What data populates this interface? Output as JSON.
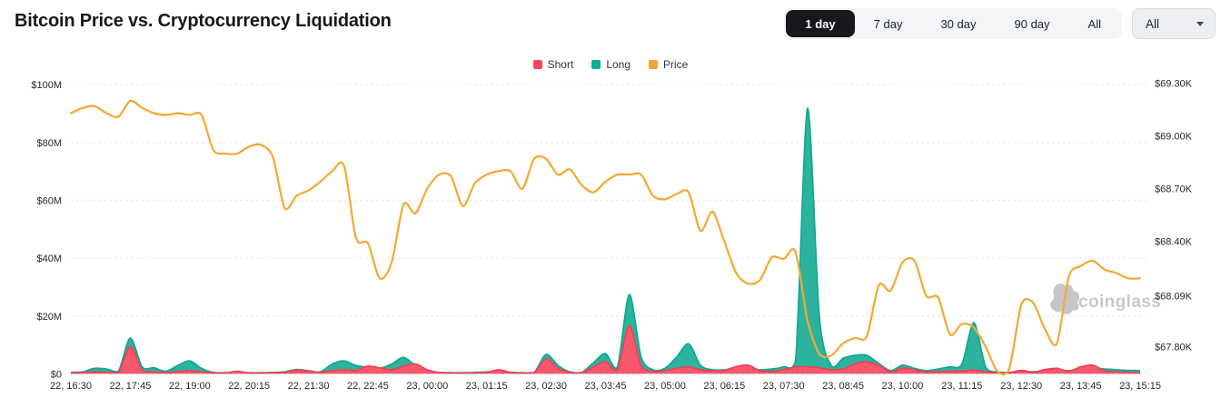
{
  "header": {
    "title": "Bitcoin Price vs. Cryptocurrency Liquidation",
    "range_buttons": [
      "1 day",
      "7 day",
      "30 day",
      "90 day",
      "All"
    ],
    "range_selected": "1 day",
    "dropdown": {
      "value": "All"
    }
  },
  "legend": [
    {
      "label": "Short",
      "color": "#F5465D"
    },
    {
      "label": "Long",
      "color": "#0EAD94"
    },
    {
      "label": "Price",
      "color": "#F0A63C"
    }
  ],
  "watermark": {
    "text": "coinglass"
  },
  "chart_data": {
    "type": "area+line",
    "x_labels": [
      "22, 16:30",
      "22, 17:45",
      "22, 19:00",
      "22, 20:15",
      "22, 21:30",
      "22, 22:45",
      "23, 00:00",
      "23, 01:15",
      "23, 02:30",
      "23, 03:45",
      "23, 05:00",
      "23, 06:15",
      "23, 07:30",
      "23, 08:45",
      "23, 10:00",
      "23, 11:15",
      "23, 12:30",
      "23, 13:45",
      "23, 15:15"
    ],
    "x_label_indices": [
      0,
      5,
      10,
      15,
      20,
      25,
      30,
      35,
      40,
      45,
      50,
      55,
      60,
      65,
      70,
      75,
      80,
      85,
      90
    ],
    "left_axis": {
      "ticks": [
        "$0",
        "$20M",
        "$40M",
        "$60M",
        "$80M",
        "$100M"
      ],
      "values": [
        0,
        20,
        40,
        60,
        80,
        100
      ],
      "range": [
        0,
        100
      ]
    },
    "right_axis": {
      "ticks": [
        "$67.80K",
        "$68.09K",
        "$68.40K",
        "$68.70K",
        "$69.00K",
        "$69.30K"
      ],
      "values": [
        67.8,
        68.09,
        68.4,
        68.7,
        69.0,
        69.3
      ],
      "range": [
        67.8,
        69.3
      ]
    },
    "grid": "horizontal-dashed",
    "legend_position": "top-center",
    "series": [
      {
        "name": "Short",
        "type": "area",
        "axis": "left",
        "unit": "$M",
        "color": "#F43D55",
        "fill": "#F7586C",
        "values": [
          0.4,
          0.5,
          0.8,
          0.6,
          0.5,
          9.6,
          1.5,
          0.8,
          0.5,
          0.9,
          1.2,
          0.8,
          0.4,
          0.4,
          1.0,
          0.4,
          0.4,
          0.5,
          0.6,
          1.4,
          1.0,
          0.6,
          1.2,
          1.5,
          1.3,
          2.8,
          2.2,
          1.5,
          2.8,
          3.5,
          1.5,
          0.5,
          0.4,
          0.4,
          0.4,
          0.6,
          1.5,
          0.6,
          0.4,
          0.5,
          5.2,
          2.0,
          0.6,
          0.5,
          2.5,
          4.3,
          1.5,
          16.8,
          3.0,
          1.0,
          1.2,
          2.0,
          2.5,
          1.5,
          1.2,
          1.3,
          2.6,
          3.1,
          1.2,
          1.0,
          1.5,
          2.5,
          2.5,
          2.2,
          1.5,
          1.8,
          3.5,
          4.3,
          3.0,
          0.8,
          2.1,
          1.5,
          0.8,
          0.9,
          1.0,
          1.1,
          1.4,
          0.8,
          0.5,
          0.5,
          1.3,
          0.6,
          1.6,
          2.0,
          1.0,
          2.5,
          3.1,
          1.2,
          0.8,
          0.6,
          0.5
        ]
      },
      {
        "name": "Long",
        "type": "area",
        "axis": "left",
        "unit": "$M",
        "color": "#0BA88D",
        "fill": "#2CB39D",
        "values": [
          0.6,
          0.8,
          2.0,
          1.8,
          1.0,
          12.5,
          2.5,
          2.2,
          1.0,
          3.0,
          4.6,
          2.0,
          0.6,
          0.5,
          0.7,
          0.5,
          0.5,
          0.6,
          0.8,
          1.6,
          1.2,
          0.8,
          3.5,
          4.6,
          3.0,
          2.4,
          2.0,
          3.5,
          5.8,
          3.0,
          1.2,
          0.6,
          0.5,
          0.5,
          0.6,
          0.8,
          1.2,
          0.7,
          0.5,
          0.6,
          6.8,
          3.0,
          0.8,
          0.6,
          4.0,
          7.1,
          2.5,
          27.5,
          6.0,
          1.5,
          2.0,
          6.0,
          10.5,
          3.0,
          1.5,
          1.5,
          2.2,
          2.0,
          1.5,
          1.8,
          2.5,
          4.7,
          91.8,
          20.0,
          3.0,
          5.5,
          6.5,
          6.5,
          3.7,
          1.2,
          3.1,
          2.0,
          1.2,
          1.8,
          2.5,
          3.5,
          17.8,
          2.5,
          0.8,
          0.6,
          1.0,
          0.8,
          1.2,
          1.5,
          1.2,
          1.8,
          2.0,
          1.8,
          1.5,
          1.3,
          1.2
        ]
      },
      {
        "name": "Price",
        "type": "line",
        "axis": "right",
        "unit": "$K",
        "color": "#F6A82F",
        "values": [
          69.13,
          69.16,
          69.17,
          69.13,
          69.11,
          69.2,
          69.16,
          69.13,
          69.12,
          69.13,
          69.12,
          69.12,
          68.92,
          68.9,
          68.9,
          68.94,
          68.95,
          68.88,
          68.59,
          68.66,
          68.69,
          68.74,
          68.8,
          68.83,
          68.42,
          68.39,
          68.19,
          68.28,
          68.61,
          68.56,
          68.7,
          68.78,
          68.77,
          68.6,
          68.73,
          68.78,
          68.8,
          68.8,
          68.7,
          68.87,
          68.87,
          68.78,
          68.81,
          68.72,
          68.68,
          68.74,
          68.78,
          68.78,
          68.78,
          68.66,
          68.64,
          68.67,
          68.68,
          68.46,
          68.57,
          68.4,
          68.22,
          68.16,
          68.18,
          68.31,
          68.3,
          68.34,
          67.95,
          67.76,
          67.75,
          67.82,
          67.85,
          67.86,
          68.15,
          68.12,
          68.28,
          68.29,
          68.09,
          68.08,
          67.87,
          67.93,
          67.91,
          67.8,
          67.66,
          67.68,
          68.04,
          68.05,
          67.9,
          67.82,
          68.2,
          68.26,
          68.29,
          68.24,
          68.22,
          68.19,
          68.19
        ]
      }
    ]
  }
}
